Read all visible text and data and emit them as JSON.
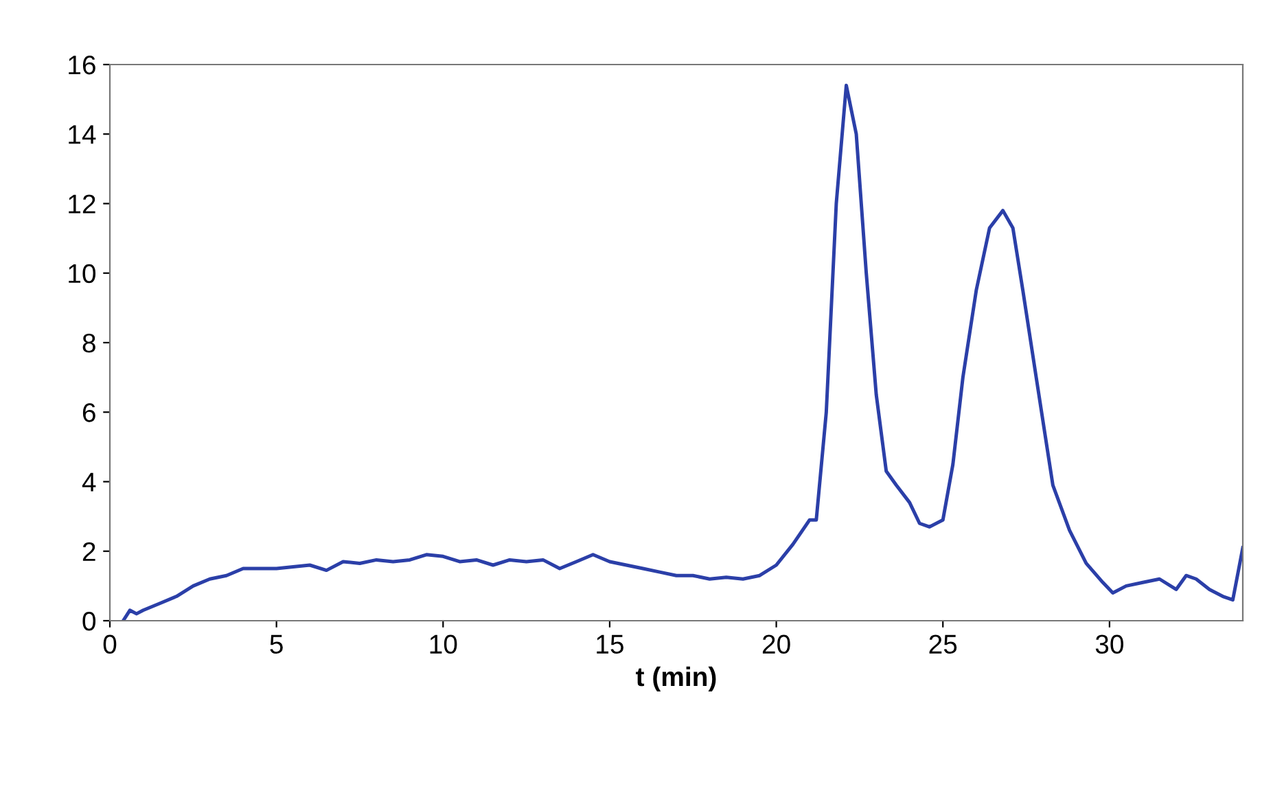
{
  "chart_data": {
    "type": "line",
    "xlabel": "t (min)",
    "xlim": [
      0,
      34
    ],
    "ylim": [
      0,
      16
    ],
    "xticks": [
      0,
      5,
      10,
      15,
      20,
      25,
      30
    ],
    "yticks": [
      0,
      2,
      4,
      6,
      8,
      10,
      12,
      14,
      16
    ],
    "grid": false,
    "legend": false,
    "series": [
      {
        "color": "#2b3fa8",
        "x": [
          0.4,
          0.6,
          0.8,
          1.0,
          1.5,
          2.0,
          2.5,
          3.0,
          3.5,
          4.0,
          4.5,
          5.0,
          5.5,
          6.0,
          6.5,
          7.0,
          7.5,
          8.0,
          8.5,
          9.0,
          9.5,
          10.0,
          10.5,
          11.0,
          11.5,
          12.0,
          12.5,
          13.0,
          13.5,
          14.0,
          14.5,
          15.0,
          15.5,
          16.0,
          16.5,
          17.0,
          17.5,
          18.0,
          18.5,
          19.0,
          19.5,
          20.0,
          20.5,
          21.0,
          21.2,
          21.5,
          21.8,
          22.1,
          22.4,
          22.7,
          23.0,
          23.3,
          23.6,
          24.0,
          24.3,
          24.6,
          25.0,
          25.3,
          25.6,
          26.0,
          26.4,
          26.8,
          27.1,
          27.4,
          27.8,
          28.3,
          28.8,
          29.3,
          29.8,
          30.1,
          30.5,
          31.0,
          31.5,
          32.0,
          32.3,
          32.6,
          33.0,
          33.4,
          33.7,
          34.0
        ],
        "values": [
          0.0,
          0.3,
          0.2,
          0.3,
          0.5,
          0.7,
          1.0,
          1.2,
          1.3,
          1.5,
          1.5,
          1.5,
          1.55,
          1.6,
          1.45,
          1.7,
          1.65,
          1.75,
          1.7,
          1.75,
          1.9,
          1.85,
          1.7,
          1.75,
          1.6,
          1.75,
          1.7,
          1.75,
          1.5,
          1.7,
          1.9,
          1.7,
          1.6,
          1.5,
          1.4,
          1.3,
          1.3,
          1.2,
          1.25,
          1.2,
          1.3,
          1.6,
          2.2,
          2.9,
          2.9,
          6.0,
          12.0,
          15.4,
          14.0,
          10.0,
          6.5,
          4.3,
          3.9,
          3.4,
          2.8,
          2.7,
          2.9,
          4.5,
          7.0,
          9.5,
          11.3,
          11.8,
          11.3,
          9.5,
          7.0,
          3.9,
          2.6,
          1.65,
          1.1,
          0.8,
          1.0,
          1.1,
          1.2,
          0.9,
          1.3,
          1.2,
          0.9,
          0.7,
          0.6,
          2.1
        ]
      }
    ]
  }
}
